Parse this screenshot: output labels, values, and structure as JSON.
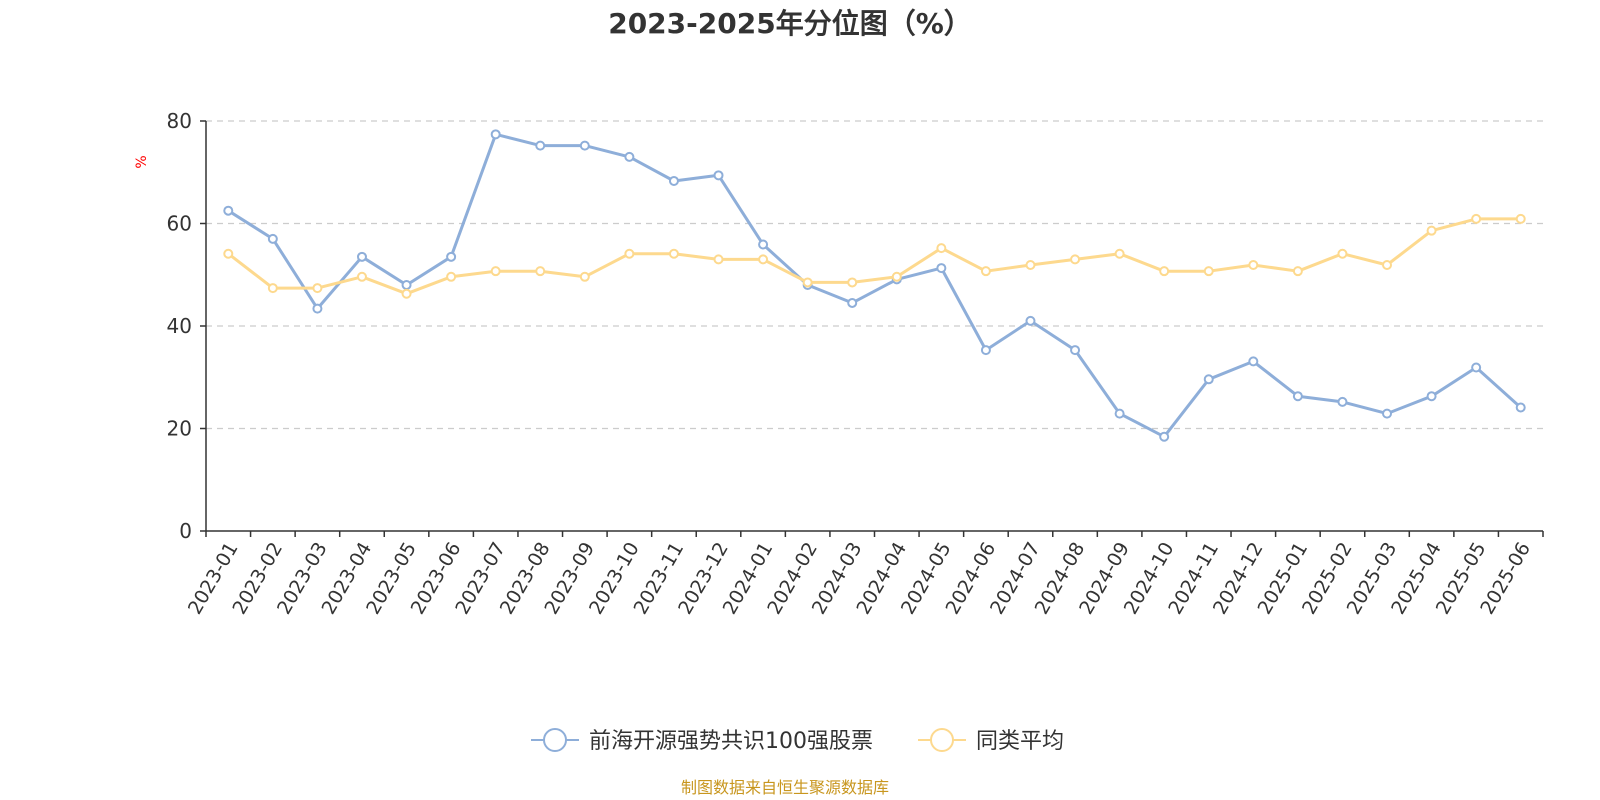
{
  "chart_data": {
    "type": "line",
    "title": "2023-2025年分位图（%）",
    "ylabel": "%",
    "xlabel": "",
    "ylim": [
      0,
      80
    ],
    "yticks": [
      0,
      20,
      40,
      60,
      80
    ],
    "grid": "horizontal-dashed",
    "legend_position": "bottom",
    "categories": [
      "2023-01",
      "2023-02",
      "2023-03",
      "2023-04",
      "2023-05",
      "2023-06",
      "2023-07",
      "2023-08",
      "2023-09",
      "2023-10",
      "2023-11",
      "2023-12",
      "2024-01",
      "2024-02",
      "2024-03",
      "2024-04",
      "2024-05",
      "2024-06",
      "2024-07",
      "2024-08",
      "2024-09",
      "2024-10",
      "2024-11",
      "2024-12",
      "2025-01",
      "2025-02",
      "2025-03",
      "2025-04",
      "2025-05",
      "2025-06"
    ],
    "series": [
      {
        "name": "前海开源强势共识100强股票",
        "color": "#8eaed9",
        "values": [
          62.5,
          57.0,
          43.4,
          53.5,
          48.0,
          53.5,
          77.4,
          75.2,
          75.2,
          73.0,
          68.3,
          69.4,
          55.9,
          48.0,
          44.5,
          49.1,
          51.3,
          35.3,
          41.0,
          35.3,
          22.9,
          18.4,
          29.6,
          33.1,
          26.3,
          25.2,
          22.9,
          26.3,
          31.9,
          24.1
        ]
      },
      {
        "name": "同类平均",
        "color": "#fdd98e",
        "values": [
          54.1,
          47.4,
          47.4,
          49.6,
          46.3,
          49.6,
          50.7,
          50.7,
          49.6,
          54.1,
          54.1,
          53.0,
          53.0,
          48.5,
          48.5,
          49.6,
          55.2,
          50.7,
          51.9,
          53.0,
          54.1,
          50.7,
          50.7,
          51.9,
          50.7,
          54.1,
          51.9,
          58.6,
          60.9,
          60.9
        ]
      }
    ]
  },
  "footer": {
    "source_text": "制图数据来自恒生聚源数据库",
    "source_color": "#c8961e"
  },
  "colors": {
    "unit_label": "#ff0000",
    "axis": "#333333",
    "grid": "#cccccc"
  }
}
